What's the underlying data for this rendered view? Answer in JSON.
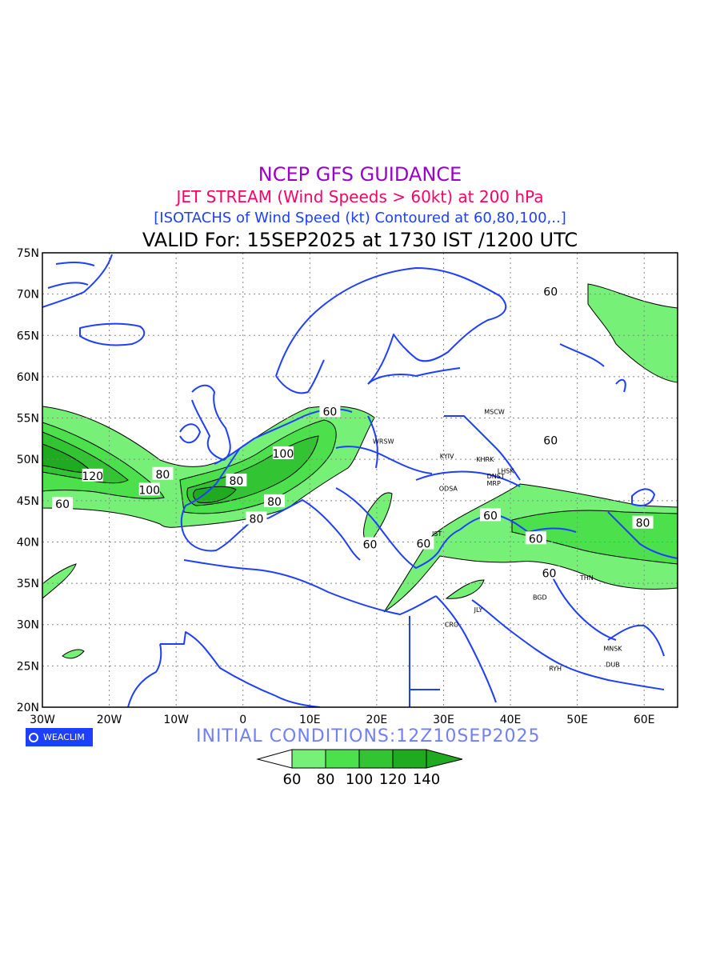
{
  "titles": {
    "line1": "NCEP GFS GUIDANCE",
    "line2": "JET STREAM (Wind Speeds > 60kt) at 200 hPa",
    "line3": "[ISOTACHS of Wind Speed (kt) Contoured at 60,80,100,..]",
    "line4": "VALID For: 15SEP2025 at 1730 IST /1200 UTC"
  },
  "map": {
    "lat_range": [
      20,
      75
    ],
    "lon_range": [
      -30,
      65
    ],
    "lat_labels": [
      "75N",
      "70N",
      "65N",
      "60N",
      "55N",
      "50N",
      "45N",
      "40N",
      "35N",
      "30N",
      "25N",
      "20N"
    ],
    "lon_labels": [
      "30W",
      "20W",
      "10W",
      "0",
      "10E",
      "20E",
      "30E",
      "40E",
      "50E",
      "60E"
    ],
    "grid": true,
    "coastline_color": "#1f3fff",
    "contour_labels": [
      "60",
      "60",
      "60",
      "80",
      "100",
      "120",
      "100",
      "80",
      "60",
      "80",
      "80",
      "60",
      "60",
      "60",
      "60",
      "80",
      "60"
    ],
    "cities": [
      {
        "name": "MSCW",
        "lon": 37.6,
        "lat": 55.8
      },
      {
        "name": "WRSW",
        "lon": 21.0,
        "lat": 52.2
      },
      {
        "name": "KYIV",
        "lon": 30.5,
        "lat": 50.4
      },
      {
        "name": "KHRK",
        "lon": 36.2,
        "lat": 50.0
      },
      {
        "name": "LHSK",
        "lon": 39.3,
        "lat": 48.6
      },
      {
        "name": "DNST",
        "lon": 37.8,
        "lat": 48.0
      },
      {
        "name": "MRP",
        "lon": 37.5,
        "lat": 47.1
      },
      {
        "name": "ODSA",
        "lon": 30.7,
        "lat": 46.5
      },
      {
        "name": "IST",
        "lon": 29.0,
        "lat": 41.0
      },
      {
        "name": "THN",
        "lon": 51.4,
        "lat": 35.7
      },
      {
        "name": "BGD",
        "lon": 44.4,
        "lat": 33.3
      },
      {
        "name": "JLY",
        "lon": 35.2,
        "lat": 31.8
      },
      {
        "name": "CRO",
        "lon": 31.2,
        "lat": 30.0
      },
      {
        "name": "MNSK",
        "lon": 55.3,
        "lat": 27.1
      },
      {
        "name": "DUB",
        "lon": 55.3,
        "lat": 25.2
      },
      {
        "name": "RYH",
        "lon": 46.7,
        "lat": 24.7
      }
    ]
  },
  "legend": {
    "labels": [
      "60",
      "80",
      "100",
      "120",
      "140"
    ],
    "colors": [
      "#ffffff",
      "#77f077",
      "#4ce04c",
      "#33c433",
      "#1faa1f"
    ]
  },
  "logo_text": "WEACLIM",
  "initial_conditions": "INITIAL  CONDITIONS:12Z10SEP2025"
}
